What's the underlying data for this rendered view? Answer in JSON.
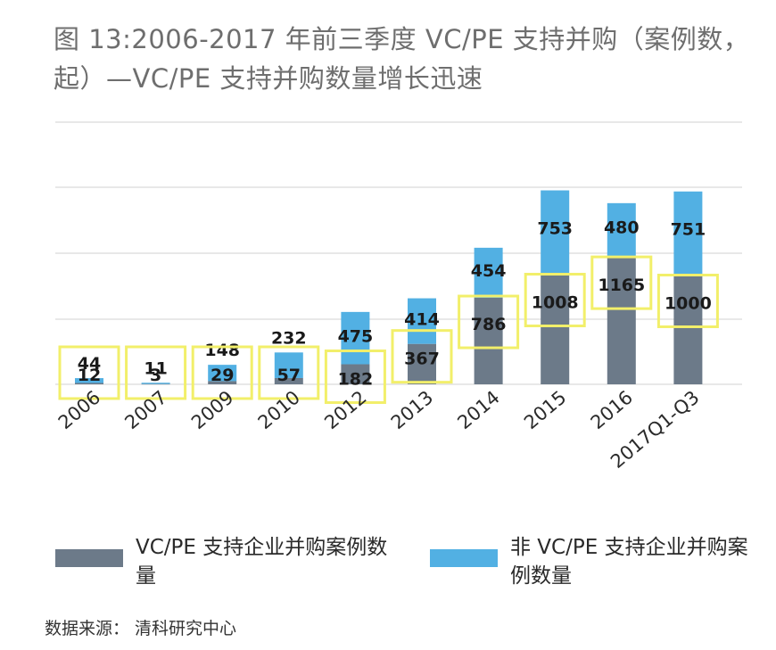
{
  "title": "图 13:2006-2017 年前三季度 VC/PE 支持并购（案例数，起）—VC/PE 支持并购数量增长迅速",
  "source": "数据来源： 清科研究中心",
  "colors": {
    "vcpe": "#6c7a89",
    "non_vcpe": "#52b0e3",
    "grid": "#d9d9d9",
    "highlight": "#f2ef6a"
  },
  "chart_data": {
    "type": "bar",
    "stacked": true,
    "categories": [
      "2006",
      "2007",
      "2009",
      "2010",
      "2012",
      "2013",
      "2014",
      "2015",
      "2016",
      "2017Q1-Q3"
    ],
    "series": [
      {
        "name": "VC/PE 支持企业并购案例数量",
        "values": [
          12,
          3,
          29,
          57,
          182,
          367,
          786,
          1008,
          1165,
          1000
        ]
      },
      {
        "name": "非 VC/PE 支持企业并购案例数量",
        "values": [
          44,
          11,
          148,
          232,
          475,
          414,
          454,
          753,
          480,
          751
        ]
      }
    ],
    "legend": "bottom"
  }
}
